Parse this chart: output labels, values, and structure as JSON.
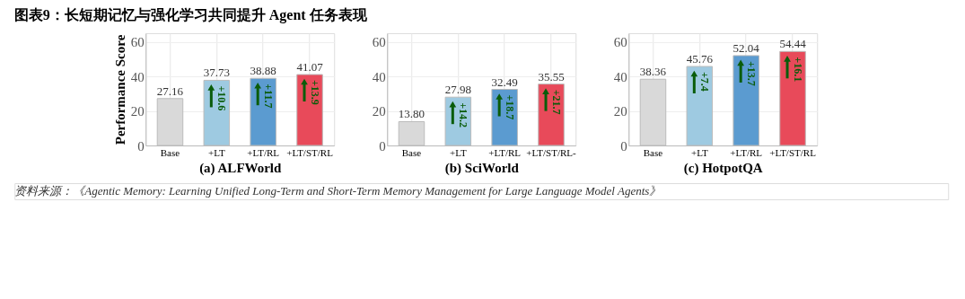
{
  "chart_data": [
    {
      "type": "bar",
      "title": "图表9：长短期记忆与强化学习共同提升 Agent 任务表现",
      "xlabel": "(a) ALFWorld",
      "ylabel": "Performance Score",
      "categories": [
        "Base",
        "+LT",
        "+LT/RL",
        "+LT/ST/RL"
      ],
      "values": [
        27.16,
        37.73,
        38.88,
        41.07
      ],
      "value_labels": [
        "27.16",
        "37.73",
        "38.88",
        "41.07"
      ],
      "colors": [
        "#d9d9d9",
        "#9ecae1",
        "#5b9bd0",
        "#e84a5a"
      ],
      "ylim": [
        0,
        65
      ],
      "yticks": [
        0,
        20,
        40,
        60
      ],
      "grid": true,
      "annotations": [
        {
          "text": "+10.6",
          "x": "+LT",
          "y": 37.73
        },
        {
          "text": "+11.7",
          "x": "+LT/RL",
          "y": 38.88
        },
        {
          "text": "+13.9",
          "x": "+LT/ST/RL",
          "y": 41.07
        },
        "资料来源：《Agentic Memory: Learning Unified Long-Term and Short-Term Memory Management for Large Language Model Agents》"
      ]
    },
    {
      "type": "bar",
      "xlabel": "(b) SciWorld",
      "categories": [
        "Base",
        "+LT",
        "+LT/RL",
        "+LT/ST/RL-"
      ],
      "values": [
        13.8,
        27.98,
        32.49,
        35.55
      ],
      "value_labels": [
        "13.80",
        "27.98",
        "32.49",
        "35.55"
      ],
      "colors": [
        "#d9d9d9",
        "#9ecae1",
        "#5b9bd0",
        "#e84a5a"
      ],
      "ylim": [
        0,
        65
      ],
      "yticks": [
        0,
        20,
        40,
        60
      ],
      "grid": true,
      "annotations": [
        {
          "text": "+14.2",
          "x": "+LT",
          "y": 27.98
        },
        {
          "text": "+18.7",
          "x": "+LT/RL",
          "y": 32.49
        },
        {
          "text": "+21.7",
          "x": "+LT/ST/RL-",
          "y": 35.55
        }
      ]
    },
    {
      "type": "bar",
      "xlabel": "(c) HotpotQA",
      "categories": [
        "Base",
        "+LT",
        "+LT/RL",
        "+LT/ST/RL"
      ],
      "values": [
        38.36,
        45.76,
        52.04,
        54.44
      ],
      "value_labels": [
        "38.36",
        "45.76",
        "52.04",
        "54.44"
      ],
      "colors": [
        "#d9d9d9",
        "#9ecae1",
        "#5b9bd0",
        "#e84a5a"
      ],
      "ylim": [
        0,
        65
      ],
      "yticks": [
        0,
        20,
        40,
        60
      ],
      "grid": true,
      "annotations": [
        {
          "text": "+7.4",
          "x": "+LT",
          "y": 45.76
        },
        {
          "text": "+13.7",
          "x": "+LT/RL",
          "y": 52.04
        },
        {
          "text": "+16.1",
          "x": "+LT/ST/RL",
          "y": 54.44
        }
      ]
    }
  ]
}
